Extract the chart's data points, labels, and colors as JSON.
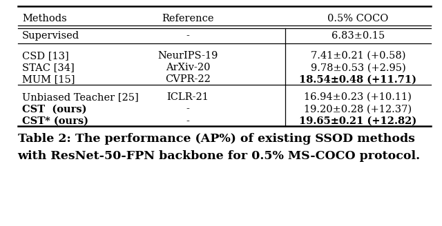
{
  "title_line1": "Table 2: The performance (AP%) of existing SSOD methods",
  "title_line2": "with ResNet-50-FPN backbone for 0.5% MS-COCO protocol.",
  "col_headers": [
    "Methods",
    "Reference",
    "0.5% COCO"
  ],
  "rows": [
    {
      "method": "Supervised",
      "ref": "-",
      "result": "6.83±0.15",
      "method_bold": false,
      "result_bold": false,
      "group": 0
    },
    {
      "method": "CSD [13]",
      "ref": "NeurIPS-19",
      "result": "7.41±0.21 (+0.58)",
      "method_bold": false,
      "result_bold": false,
      "group": 1
    },
    {
      "method": "STAC [34]",
      "ref": "ArXiv-20",
      "result": "9.78±0.53 (+2.95)",
      "method_bold": false,
      "result_bold": false,
      "group": 1
    },
    {
      "method": "MUM [15]",
      "ref": "CVPR-22",
      "result": "18.54±0.48 (+11.71)",
      "method_bold": false,
      "result_bold": true,
      "group": 1
    },
    {
      "method": "Unbiased Teacher [25]",
      "ref": "ICLR-21",
      "result": "16.94±0.23 (+10.11)",
      "method_bold": false,
      "result_bold": false,
      "group": 2
    },
    {
      "method": "CST  (ours)",
      "ref": "-",
      "result": "19.20±0.28 (+12.37)",
      "method_bold": true,
      "result_bold": false,
      "group": 2
    },
    {
      "method": "CST* (ours)",
      "ref": "-",
      "result": "19.65±0.21 (+12.82)",
      "method_bold": true,
      "result_bold": true,
      "group": 2
    }
  ],
  "background_color": "#ffffff",
  "text_color": "#000000",
  "font_size": 10.5,
  "caption_font_size": 12.5
}
